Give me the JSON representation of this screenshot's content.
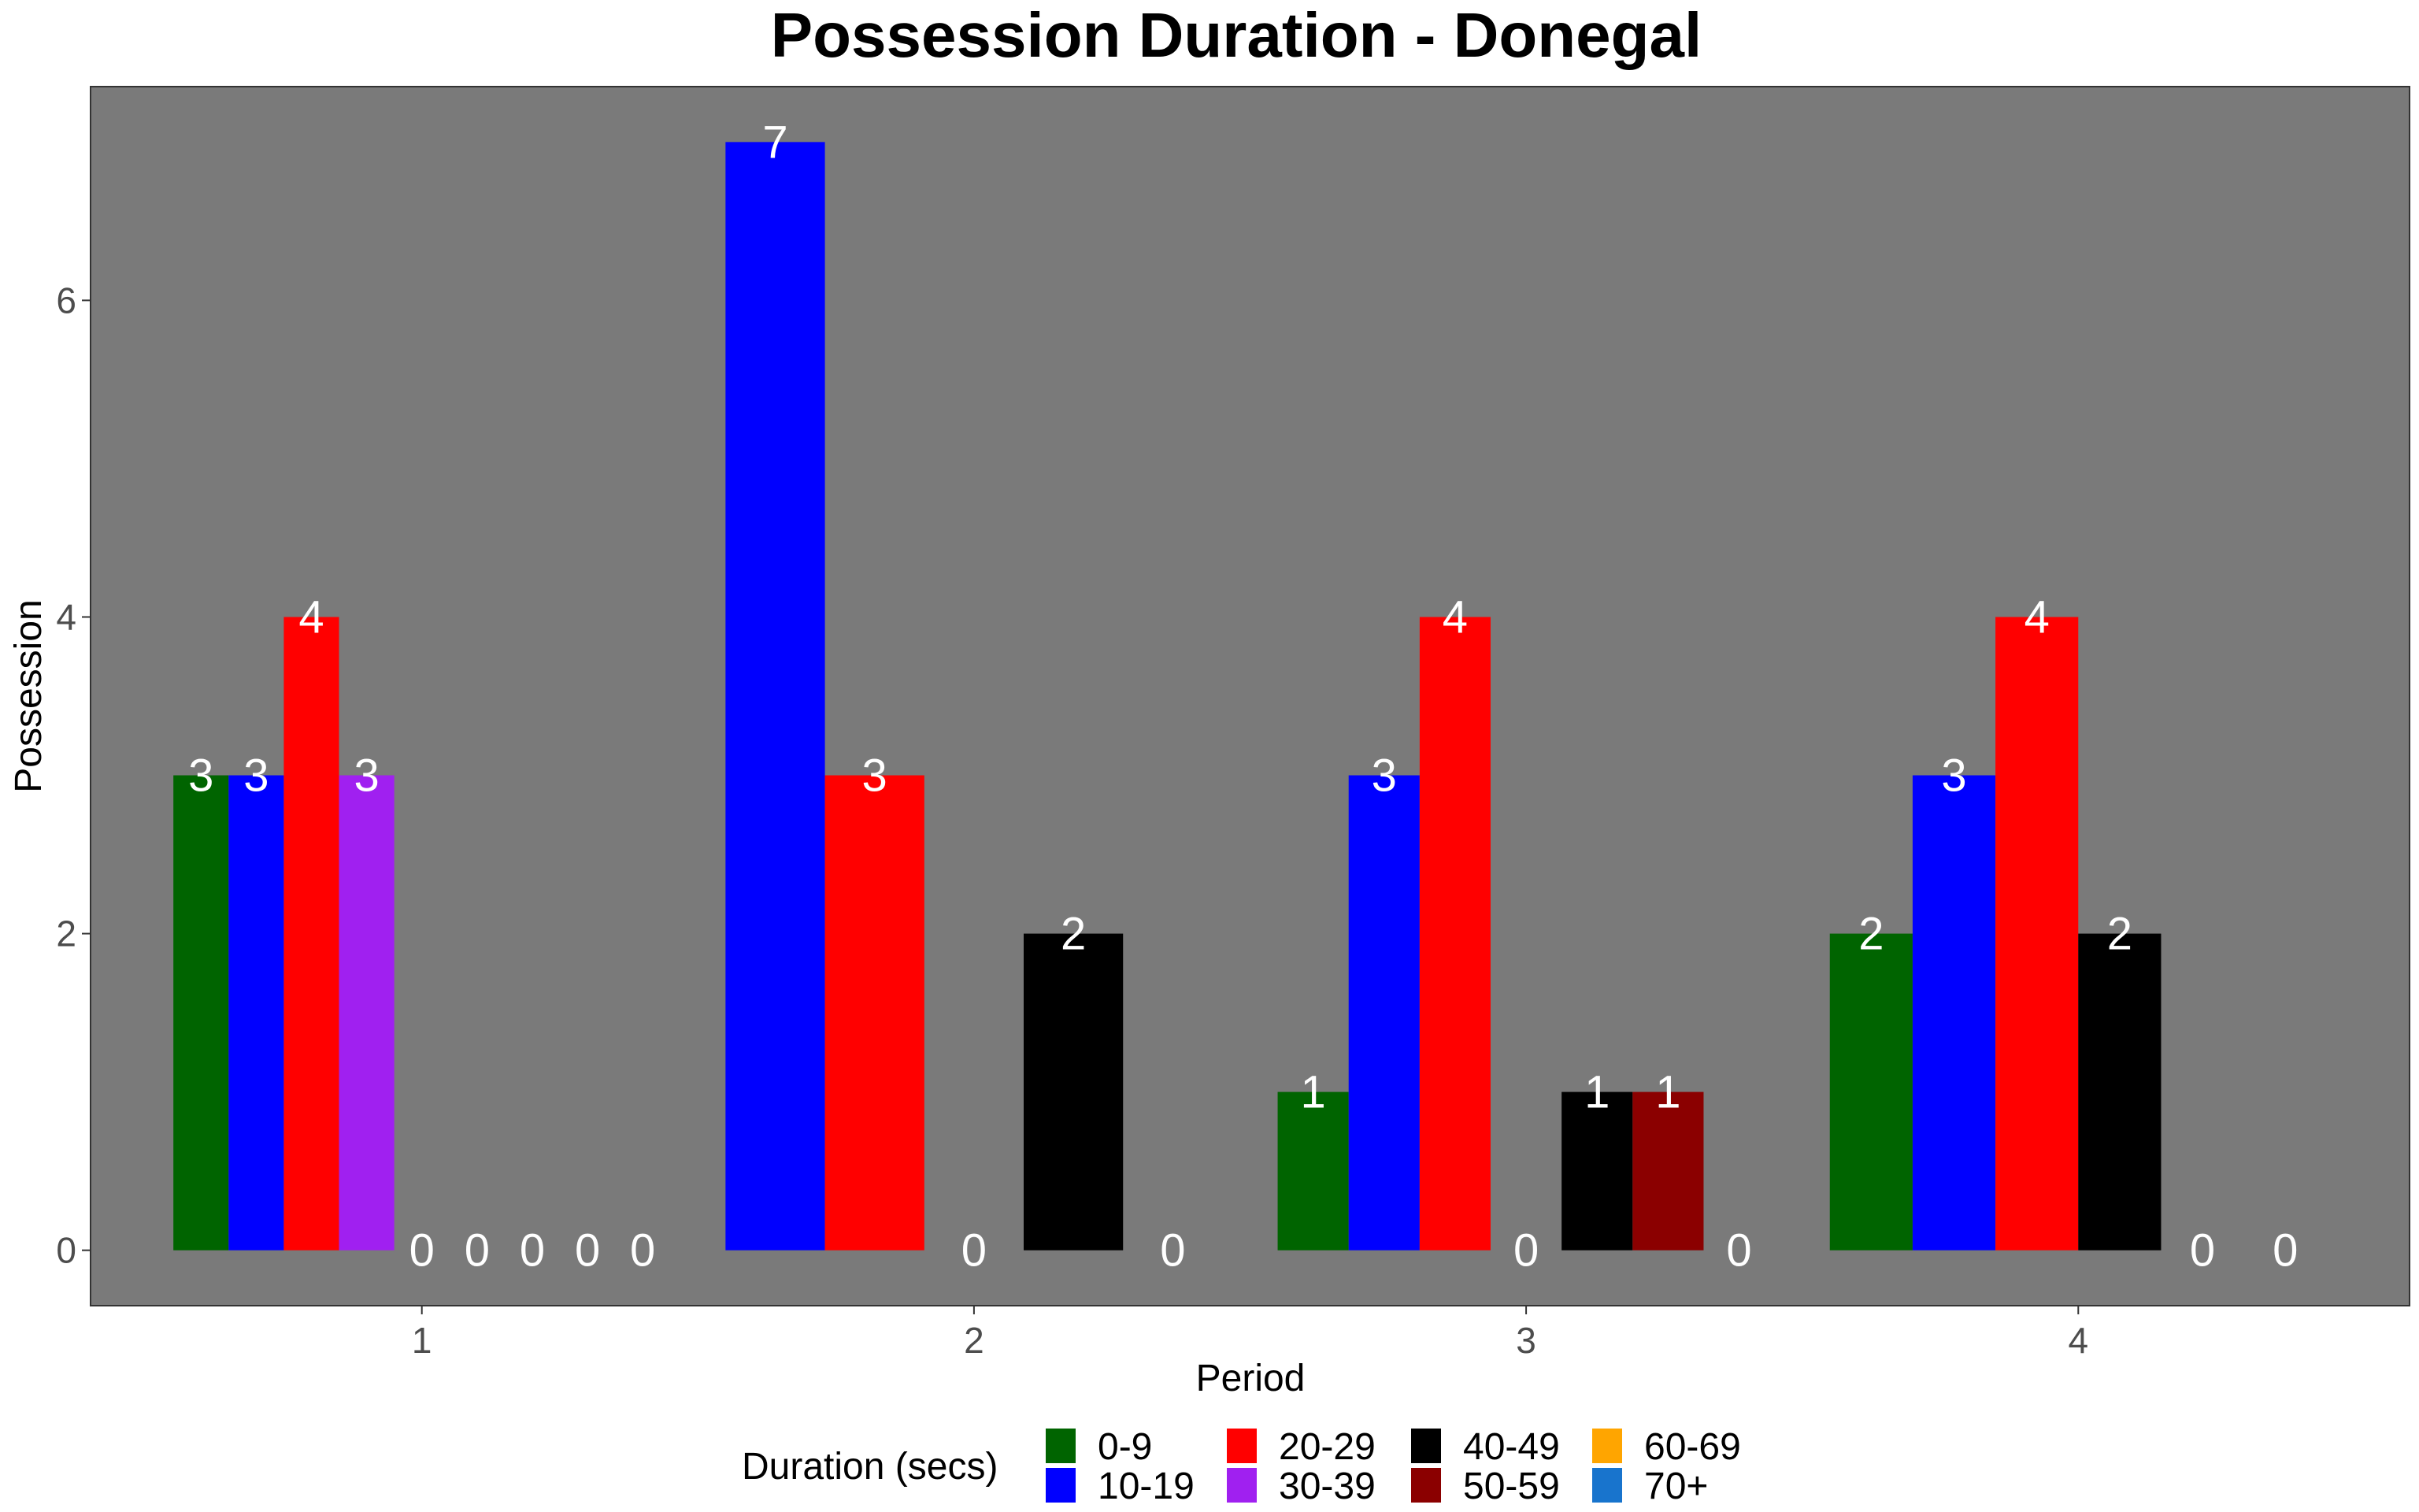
{
  "chart_data": {
    "type": "bar",
    "title": "Possession Duration - Donegal",
    "xlabel": "Period",
    "ylabel": "Possession",
    "categories": [
      "1",
      "2",
      "3",
      "4"
    ],
    "y_ticks": [
      "0",
      "2",
      "4",
      "6"
    ],
    "ylim": [
      -0.35,
      7.35
    ],
    "grid": false,
    "legend_position": "bottom",
    "legend": {
      "title": "Duration (secs)",
      "entries": [
        {
          "name": "0-9",
          "color": "#006400"
        },
        {
          "name": "10-19",
          "color": "#0000ff"
        },
        {
          "name": "20-29",
          "color": "#ff0000"
        },
        {
          "name": "30-39",
          "color": "#a020f0"
        },
        {
          "name": "40-49",
          "color": "#000000"
        },
        {
          "name": "50-59",
          "color": "#8b0000"
        },
        {
          "name": "60-69",
          "color": "#ffa500"
        },
        {
          "name": "70+",
          "color": "#1874cd"
        }
      ]
    },
    "groups": [
      {
        "category": "1",
        "bars": [
          {
            "series": "0-9",
            "value": 3
          },
          {
            "series": "10-19",
            "value": 3
          },
          {
            "series": "20-29",
            "value": 4
          },
          {
            "series": "30-39",
            "value": 3
          },
          {
            "series": "40-49",
            "value": 0
          },
          {
            "series": "50-59",
            "value": 0
          },
          {
            "series": "60-69",
            "value": 0
          },
          {
            "series": "70+",
            "value": 0
          },
          {
            "series": "70+",
            "value": 0
          }
        ]
      },
      {
        "category": "2",
        "bars": [
          {
            "series": "10-19",
            "value": 7
          },
          {
            "series": "20-29",
            "value": 3
          },
          {
            "series": "30-39",
            "value": 0
          },
          {
            "series": "40-49",
            "value": 2
          },
          {
            "series": "50-59",
            "value": 0
          }
        ]
      },
      {
        "category": "3",
        "bars": [
          {
            "series": "0-9",
            "value": 1
          },
          {
            "series": "10-19",
            "value": 3
          },
          {
            "series": "20-29",
            "value": 4
          },
          {
            "series": "30-39",
            "value": 0
          },
          {
            "series": "40-49",
            "value": 1
          },
          {
            "series": "50-59",
            "value": 1
          },
          {
            "series": "60-69",
            "value": 0
          }
        ]
      },
      {
        "category": "4",
        "bars": [
          {
            "series": "0-9",
            "value": 2
          },
          {
            "series": "10-19",
            "value": 3
          },
          {
            "series": "20-29",
            "value": 4
          },
          {
            "series": "40-49",
            "value": 2
          },
          {
            "series": "50-59",
            "value": 0
          },
          {
            "series": "60-69",
            "value": 0
          }
        ]
      }
    ],
    "colors": {
      "panel_background": "#7a7a7a",
      "data_label": "#ffffff"
    }
  }
}
